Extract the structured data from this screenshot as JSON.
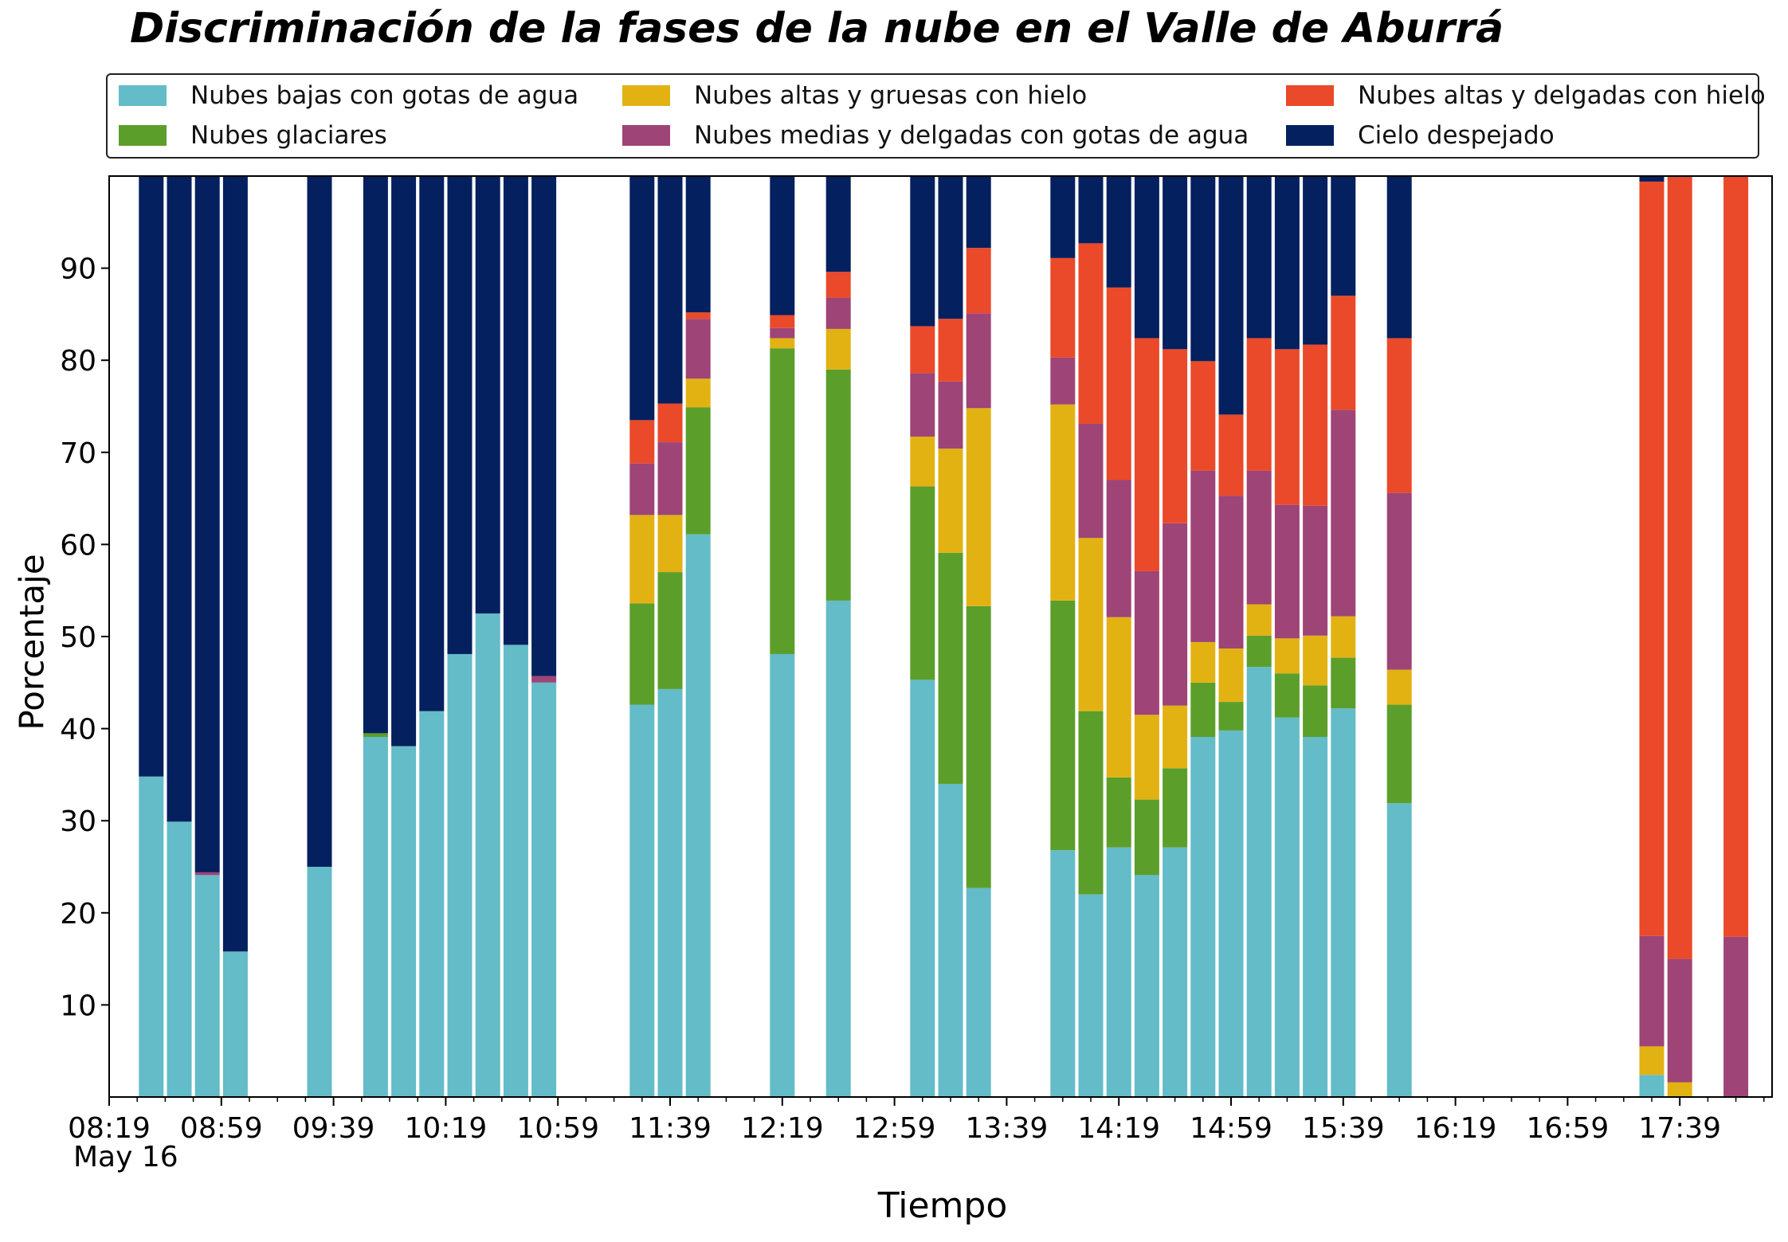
{
  "chart_data": {
    "type": "bar",
    "stacked": true,
    "title": "Discriminación de la fases de la nube en el Valle de Aburrá",
    "xlabel": "Tiempo",
    "ylabel": "Porcentaje",
    "ylim": [
      0,
      100
    ],
    "yticks": [
      10,
      20,
      30,
      40,
      50,
      60,
      70,
      80,
      90
    ],
    "xticks": [
      "08:19",
      "08:59",
      "09:39",
      "10:19",
      "10:59",
      "11:39",
      "12:19",
      "12:59",
      "13:39",
      "14:19",
      "14:59",
      "15:39",
      "16:19",
      "16:59",
      "17:39"
    ],
    "date_label": "May 16",
    "grid": false,
    "legend_position": "top",
    "x": [
      "08:34",
      "08:44",
      "08:54",
      "09:04",
      "09:34",
      "09:54",
      "10:04",
      "10:14",
      "10:24",
      "10:34",
      "10:44",
      "10:54",
      "11:29",
      "11:39",
      "11:49",
      "12:19",
      "12:39",
      "13:09",
      "13:19",
      "13:29",
      "13:59",
      "14:09",
      "14:19",
      "14:29",
      "14:39",
      "14:49",
      "14:59",
      "15:09",
      "15:19",
      "15:29",
      "15:39",
      "15:59",
      "17:29",
      "17:39",
      "17:59"
    ],
    "series": [
      {
        "name": "Nubes bajas con gotas de agua",
        "color": "#63bcc8",
        "values": [
          34.8,
          29.9,
          24.1,
          15.8,
          25.0,
          39.1,
          38.1,
          41.9,
          48.1,
          52.5,
          49.1,
          45.0,
          42.6,
          44.3,
          61.1,
          48.1,
          53.9,
          45.3,
          34.0,
          22.7,
          26.8,
          22.0,
          27.1,
          24.1,
          27.1,
          39.1,
          39.8,
          46.7,
          41.2,
          39.1,
          42.2,
          31.9,
          2.4,
          0,
          0
        ]
      },
      {
        "name": "Nubes glaciares",
        "color": "#5c9e2a",
        "values": [
          0,
          0,
          0,
          0,
          0,
          0.4,
          0,
          0,
          0,
          0,
          0,
          0,
          11.0,
          12.7,
          13.8,
          33.2,
          25.1,
          21.0,
          25.1,
          30.6,
          27.1,
          19.9,
          7.6,
          8.2,
          8.6,
          5.9,
          3.1,
          3.4,
          4.8,
          5.6,
          5.5,
          10.7,
          0,
          0,
          0
        ]
      },
      {
        "name": "Nubes altas y gruesas con hielo",
        "color": "#e2b213",
        "values": [
          0,
          0,
          0,
          0,
          0,
          0,
          0,
          0,
          0,
          0,
          0,
          0,
          9.6,
          6.2,
          3.1,
          1.1,
          4.4,
          5.4,
          11.3,
          21.5,
          21.3,
          18.8,
          17.4,
          9.2,
          6.8,
          4.4,
          5.8,
          3.4,
          3.8,
          5.4,
          4.5,
          3.8,
          3.1,
          1.6,
          0
        ]
      },
      {
        "name": "Nubes medias y delgadas con gotas de agua",
        "color": "#9e4477",
        "values": [
          0,
          0,
          0.3,
          0,
          0,
          0,
          0,
          0,
          0,
          0,
          0,
          0.7,
          5.6,
          7.9,
          6.5,
          1.1,
          3.4,
          6.9,
          7.3,
          10.3,
          5.1,
          12.4,
          14.9,
          15.6,
          19.8,
          18.6,
          16.6,
          14.5,
          14.5,
          14.1,
          22.4,
          19.2,
          12.0,
          13.4,
          17.4
        ]
      },
      {
        "name": "Nubes altas y delgadas con hielo",
        "color": "#ea492a",
        "values": [
          0,
          0,
          0,
          0,
          0,
          0,
          0,
          0,
          0,
          0,
          0,
          0,
          4.7,
          4.2,
          0.7,
          1.4,
          2.8,
          5.1,
          6.8,
          7.1,
          10.8,
          19.6,
          20.9,
          25.3,
          18.9,
          11.9,
          8.8,
          14.4,
          16.9,
          17.5,
          12.4,
          16.8,
          81.9,
          84.9,
          82.6
        ]
      },
      {
        "name": "Cielo despejado",
        "color": "#04205e",
        "values": [
          65.2,
          70.1,
          75.6,
          84.2,
          75.0,
          60.5,
          61.9,
          58.1,
          51.9,
          47.5,
          50.9,
          54.3,
          26.5,
          24.7,
          14.8,
          15.1,
          10.4,
          16.3,
          15.5,
          7.8,
          8.9,
          7.3,
          12.1,
          17.6,
          18.8,
          20.1,
          25.9,
          17.6,
          18.8,
          18.3,
          13.0,
          17.6,
          0.6,
          0.1,
          0
        ]
      }
    ]
  }
}
